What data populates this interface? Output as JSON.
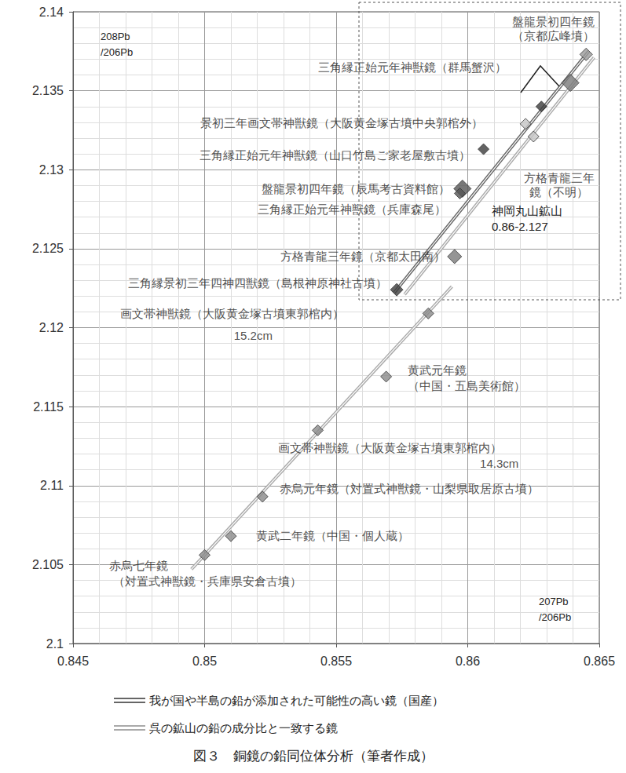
{
  "chart_data": {
    "type": "scatter",
    "title": "図３　銅鏡の鉛同位体分析（筆者作成）",
    "x_label": "207Pb\n/206Pb",
    "y_label": "208Pb\n/206Pb",
    "xlim": [
      0.845,
      0.865
    ],
    "xticks": [
      0.845,
      0.85,
      0.855,
      0.86,
      0.865
    ],
    "ylim": [
      2.1,
      2.14
    ],
    "yticks": [
      2.1,
      2.105,
      2.11,
      2.115,
      2.12,
      2.125,
      2.13,
      2.135,
      2.14
    ],
    "grid": true,
    "legend": "bottom",
    "annotations": [
      "神岡丸山鉱山\n0.86-2.127"
    ],
    "series": [
      {
        "name": "我が国や半島の鉛が添加された可能性の高い鏡（国産）",
        "type": "line",
        "color": "#666666",
        "line_style": "double",
        "values": [
          [
            0.8572,
            2.1222
          ],
          [
            0.8646,
            2.1375
          ]
        ]
      },
      {
        "name": "呉の鉱山の鉛の成分比と一致する鏡",
        "type": "line",
        "color": "#aaaaaa",
        "line_style": "double",
        "values": [
          [
            0.8495,
            2.1047
          ],
          [
            0.8594,
            2.1226
          ],
          null,
          [
            0.8576,
            2.1221
          ],
          [
            0.8648,
            2.1371
          ]
        ]
      }
    ],
    "points": {
      "type": "scatter",
      "marker": "diamond",
      "values": [
        [
          0.8645,
          2.1373
        ],
        [
          0.8628,
          2.134
        ],
        [
          0.8639,
          2.1355
        ],
        [
          0.8622,
          2.1329
        ],
        [
          0.8625,
          2.1321
        ],
        [
          0.8606,
          2.1313
        ],
        [
          0.8598,
          2.1288
        ],
        [
          0.8597,
          2.1285
        ],
        [
          0.8595,
          2.1245
        ],
        [
          0.8573,
          2.1224
        ],
        [
          0.8585,
          2.1209
        ],
        [
          0.8569,
          2.1169
        ],
        [
          0.8543,
          2.1135
        ],
        [
          0.8522,
          2.1093
        ],
        [
          0.851,
          2.1068
        ],
        [
          0.85,
          2.1056
        ]
      ],
      "colors": [
        "#9a9a9a",
        "#3c3c3c",
        "#7a7a7a",
        "#c4c4c4",
        "#c4c4c4",
        "#3c3c3c",
        "#555555",
        "#555555",
        "#7a7a7a",
        "#3c3c3c",
        "#8a8a8a",
        "#8a8a8a",
        "#8a8a8a",
        "#8a8a8a",
        "#8a8a8a",
        "#8a8a8a"
      ],
      "labels": [
        "盤龍景初四年鏡\n（京都広峰墳）",
        "三角縁正始元年神獣鏡（群馬蟹沢）",
        null,
        "景初三年画文帯神獣鏡（大阪黄金塚古墳中央郭棺外）",
        "方格青龍三年\n鏡（不明）",
        "三角縁正始元年神獣鏡（山口竹島ご家老屋敷古墳）",
        "盤龍景初四年鏡（辰馬考古資料館）",
        "三角縁正始元年神獣鏡（兵庫森尾）",
        "方格青龍三年鏡（京都太田南）",
        "三角縁景初三年四神四獣鏡（島根神原神社古墳）",
        "画文帯神獣鏡（大阪黄金塚古墳東郭棺内）\n15.2cm",
        "黄武元年鏡\n（中国・五島美術館）",
        "画文帯神獣鏡（大阪黄金塚古墳東郭棺内）\n14.3cm",
        "赤烏元年鏡（対置式神獣鏡・山梨県取居原古墳）",
        "黄武二年鏡（中国・個人蔵）",
        "赤烏七年鏡\n（対置式神獣鏡・兵庫県安倉古墳）"
      ]
    }
  }
}
